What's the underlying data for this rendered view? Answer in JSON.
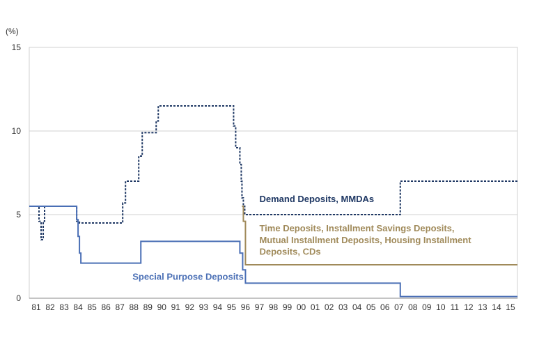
{
  "chart_data": {
    "type": "line",
    "unit_label": "(%)",
    "ylim": [
      0,
      15
    ],
    "y_ticks": [
      "15",
      "10",
      "5",
      "0"
    ],
    "y_tick_values": [
      15,
      10,
      5,
      0
    ],
    "x_range": [
      1980.5,
      2015.5
    ],
    "x_ticks": [
      "81",
      "82",
      "83",
      "84",
      "85",
      "86",
      "87",
      "88",
      "89",
      "90",
      "91",
      "92",
      "93",
      "94",
      "95",
      "96",
      "97",
      "98",
      "99",
      "00",
      "01",
      "02",
      "03",
      "04",
      "05",
      "06",
      "07",
      "08",
      "09",
      "10",
      "11",
      "12",
      "13",
      "14",
      "15"
    ],
    "x_tick_years": [
      1981,
      1982,
      1983,
      1984,
      1985,
      1986,
      1987,
      1988,
      1989,
      1990,
      1991,
      1992,
      1993,
      1994,
      1995,
      1996,
      1997,
      1998,
      1999,
      2000,
      2001,
      2002,
      2003,
      2004,
      2005,
      2006,
      2007,
      2008,
      2009,
      2010,
      2011,
      2012,
      2013,
      2014,
      2015
    ],
    "grid": "horizontal",
    "legend": "none",
    "series": [
      {
        "name": "Demand Deposits, MMDAs",
        "color": "#1f3864",
        "style": "dotted",
        "step": true,
        "x": [
          1980.5,
          1981.2,
          1981.35,
          1981.5,
          1981.6,
          1981.85,
          1983.9,
          1984.1,
          1987.0,
          1987.2,
          1987.4,
          1988.2,
          1988.35,
          1988.6,
          1989.5,
          1989.6,
          1989.75,
          1995.1,
          1995.15,
          1995.3,
          1995.6,
          1995.7,
          1995.75,
          1995.85,
          1995.95,
          2007.1,
          2015.5
        ],
        "y": [
          5.5,
          4.6,
          3.5,
          4.6,
          5.5,
          5.5,
          4.6,
          4.5,
          4.5,
          5.7,
          7.0,
          7.0,
          8.5,
          9.9,
          9.9,
          10.6,
          11.5,
          11.5,
          10.3,
          9.0,
          8.0,
          7.0,
          6.0,
          5.5,
          5.0,
          7.0,
          7.0
        ]
      },
      {
        "name": "Time Deposits, Installment Savings Deposits, Mutual Installment Deposits, Housing Installment Deposits, CDs",
        "color": "#a08a5a",
        "style": "solid",
        "step": true,
        "x": [
          1995.75,
          1995.85,
          1996.0,
          2015.5
        ],
        "y": [
          5.5,
          4.6,
          2.0,
          2.0
        ]
      },
      {
        "name": "Special Purpose Deposits",
        "color": "#4a6fb5",
        "style": "solid",
        "step": true,
        "x": [
          1980.5,
          1983.9,
          1984.0,
          1984.1,
          1984.2,
          1988.5,
          1995.6,
          1995.8,
          1996.0,
          2007.1,
          2015.5
        ],
        "y": [
          5.5,
          4.7,
          3.7,
          2.7,
          2.1,
          3.4,
          2.7,
          1.7,
          0.9,
          0.1,
          0.1
        ]
      }
    ],
    "annotations": [
      {
        "text": "Demand Deposits, MMDAs",
        "color": "#1f3864",
        "x": 1997.0,
        "y": 5.75
      },
      {
        "text": "Time Deposits, Installment Savings Deposits,",
        "color": "#a08a5a",
        "x": 1997.0,
        "y": 4.0
      },
      {
        "text": "Mutual Installment Deposits, Housing Installment",
        "color": "#a08a5a",
        "x": 1997.0,
        "y": 3.3
      },
      {
        "text": "Deposits, CDs",
        "color": "#a08a5a",
        "x": 1997.0,
        "y": 2.6
      },
      {
        "text": "Special Purpose Deposits",
        "color": "#4a6fb5",
        "x": 1987.9,
        "y": 1.1
      }
    ]
  }
}
